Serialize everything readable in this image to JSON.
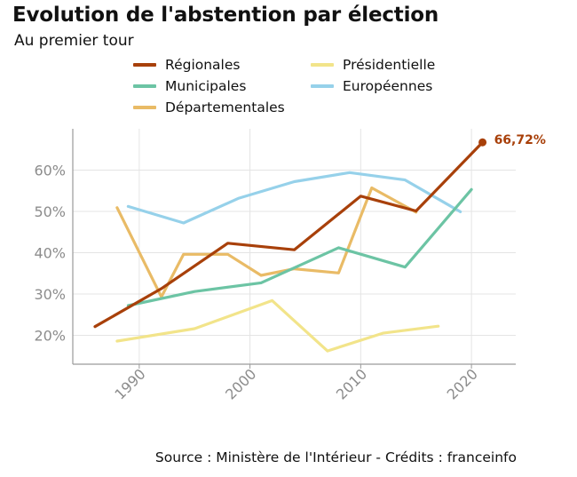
{
  "title": "Evolution de l'abstention par élection",
  "subtitle": "Au premier tour",
  "source": "Source : Ministère de l'Intérieur - Crédits : franceinfo",
  "chart_data": {
    "type": "line",
    "xlim": [
      1984,
      2024
    ],
    "ylim": [
      13,
      70
    ],
    "x_ticks": [
      1990,
      2000,
      2010,
      2020
    ],
    "y_ticks": [
      20,
      30,
      40,
      50,
      60
    ],
    "y_tick_labels": [
      "20%",
      "30%",
      "40%",
      "50%",
      "60%"
    ],
    "grid": true,
    "legend_position": "top",
    "series": [
      {
        "name": "Régionales",
        "color": "#a8400a",
        "x": [
          1986,
          1992,
          1998,
          2004,
          2010,
          2015,
          2021
        ],
        "y": [
          22.1,
          31.3,
          42.3,
          40.7,
          53.7,
          50.1,
          66.72
        ]
      },
      {
        "name": "Municipales",
        "color": "#6cc4a4",
        "x": [
          1989,
          1995,
          2001,
          2008,
          2014,
          2020
        ],
        "y": [
          27.2,
          30.6,
          32.7,
          41.2,
          36.5,
          55.3
        ]
      },
      {
        "name": "Départementales",
        "color": "#e9bb66",
        "x": [
          1988,
          1992,
          1994,
          1998,
          2001,
          2004,
          2008,
          2011,
          2015
        ],
        "y": [
          50.9,
          29.3,
          39.6,
          39.6,
          34.5,
          36.1,
          35.1,
          55.7,
          49.8
        ]
      },
      {
        "name": "Présidentielle",
        "color": "#f2e48a",
        "x": [
          1988,
          1995,
          2002,
          2007,
          2012,
          2017
        ],
        "y": [
          18.6,
          21.6,
          28.4,
          16.2,
          20.5,
          22.2
        ]
      },
      {
        "name": "Européennes",
        "color": "#96d1ea",
        "x": [
          1989,
          1994,
          1999,
          2004,
          2009,
          2014,
          2019
        ],
        "y": [
          51.2,
          47.2,
          53.2,
          57.2,
          59.4,
          57.6,
          49.9
        ]
      }
    ],
    "annotation": {
      "text": "66,72%",
      "x": 2021,
      "y": 66.72,
      "color": "#a8400a"
    }
  }
}
